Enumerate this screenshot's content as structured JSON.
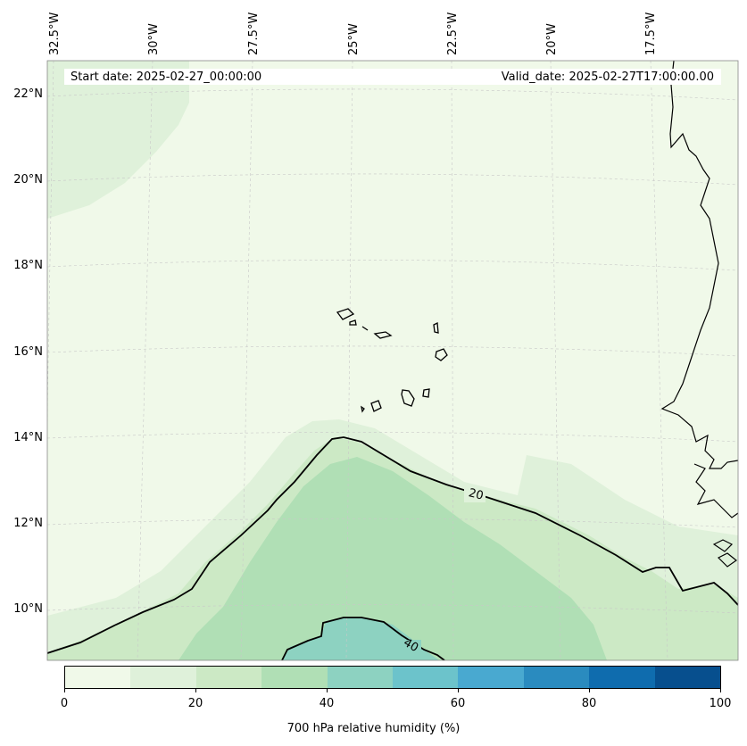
{
  "map": {
    "start_date": "Start date: 2025-02-27_00:00:00",
    "valid_date": "Valid_date: 2025-02-27T17:00:00.00",
    "lon_labels": [
      "32.5°W",
      "30°W",
      "27.5°W",
      "25°W",
      "22.5°W",
      "20°W",
      "17.5°W"
    ],
    "lat_labels": [
      "22°N",
      "20°N",
      "18°N",
      "16°N",
      "14°N",
      "12°N",
      "10°N"
    ],
    "contour_labels": [
      "20",
      "40"
    ],
    "colors": {
      "levels": [
        "#f0f9e9",
        "#dff1da",
        "#cce9c5",
        "#b0dfb5",
        "#8dd2c1",
        "#6cc3cb",
        "#49a9d0",
        "#2a8bbf",
        "#0f6cae",
        "#074f8e"
      ],
      "coastline": "#000000",
      "grid": "#c8c8c8"
    }
  },
  "colorbar": {
    "title": "700 hPa relative humidity (%)",
    "ticks": [
      "0",
      "20",
      "40",
      "60",
      "80",
      "100"
    ]
  }
}
